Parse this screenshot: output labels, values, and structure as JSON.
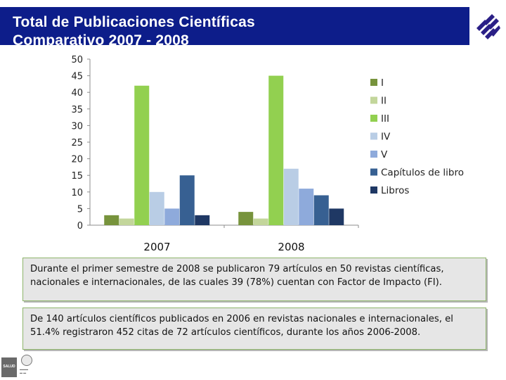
{
  "header": {
    "title_line1": "Total de Publicaciones Científicas",
    "title_line2": "Comparativo 2007 - 2008"
  },
  "colors": {
    "header_band": "#0d1d8a",
    "logo": "#2a1f86"
  },
  "chart_data": {
    "type": "bar",
    "title": "",
    "xlabel": "",
    "ylabel": "",
    "ylim": [
      0,
      50
    ],
    "yticks": [
      "0",
      "5",
      "10",
      "15",
      "20",
      "25",
      "30",
      "35",
      "40",
      "45",
      "50"
    ],
    "categories": [
      "2007",
      "2008"
    ],
    "grid": false,
    "legend_position": "right",
    "series": [
      {
        "name": "I",
        "color": "#77933c",
        "values": [
          3,
          4
        ]
      },
      {
        "name": "II",
        "color": "#c3d69b",
        "values": [
          2,
          2
        ]
      },
      {
        "name": "III",
        "color": "#92d050",
        "values": [
          42,
          45
        ]
      },
      {
        "name": "IV",
        "color": "#b9cde5",
        "values": [
          10,
          17
        ]
      },
      {
        "name": "V",
        "color": "#8eaadb",
        "values": [
          5,
          11
        ]
      },
      {
        "name": "Capítulos de libro",
        "color": "#376092",
        "values": [
          15,
          9
        ]
      },
      {
        "name": "Libros",
        "color": "#1f3864",
        "values": [
          3,
          5
        ]
      }
    ]
  },
  "notes": {
    "note1": "Durante el primer semestre de 2008 se publicaron 79 artículos en 50 revistas científicas, nacionales e internacionales, de las cuales 39 (78%) cuentan con Factor de Impacto (FI).",
    "note2": "De 140 artículos científicos publicados en 2006 en revistas nacionales e internacionales, el 51.4% registraron  452  citas de 72 artículos científicos, durante los años 2006-2008."
  },
  "footer": {
    "badge_label": "SALUD"
  }
}
